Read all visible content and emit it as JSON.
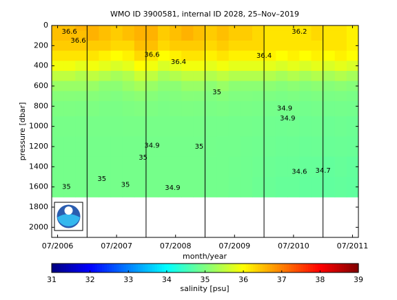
{
  "chart_data": {
    "type": "section",
    "title": "WMO ID 3900581, internal ID 2028, 25–Nov–2019",
    "x_label": "month/year",
    "y_label": "pressure [dbar]",
    "colorbar_label": "salinity [psu]",
    "xlim": [
      2006.4,
      2011.6
    ],
    "xticks": [
      {
        "value": 2006.5,
        "label": "07/2006"
      },
      {
        "value": 2007.5,
        "label": "07/2007"
      },
      {
        "value": 2008.5,
        "label": "07/2008"
      },
      {
        "value": 2009.5,
        "label": "07/2009"
      },
      {
        "value": 2010.5,
        "label": "07/2010"
      },
      {
        "value": 2011.5,
        "label": "07/2011"
      }
    ],
    "ylim": [
      2100,
      0
    ],
    "yticks": [
      0,
      200,
      400,
      600,
      800,
      1000,
      1200,
      1400,
      1600,
      1800,
      2000
    ],
    "clim": [
      31,
      39
    ],
    "colorbar_ticks": [
      31,
      32,
      33,
      34,
      35,
      36,
      37,
      38,
      39
    ],
    "year_lines": [
      2007,
      2008,
      2009,
      2010,
      2011
    ],
    "x": [
      2006.5,
      2006.7,
      2006.9,
      2007.1,
      2007.3,
      2007.5,
      2007.7,
      2007.9,
      2008.1,
      2008.3,
      2008.5,
      2008.7,
      2008.9,
      2009.1,
      2009.3,
      2009.5,
      2009.7,
      2009.9,
      2010.1,
      2010.3,
      2010.5,
      2010.7,
      2010.9,
      2011.1,
      2011.3,
      2011.5
    ],
    "pressure_levels": [
      0,
      100,
      200,
      300,
      400,
      500,
      600,
      700,
      800,
      1000,
      1200,
      1400,
      1600
    ],
    "salinity": [
      [
        36.5,
        36.5,
        36.4,
        36.2,
        35.9,
        35.5,
        35.2,
        35.05,
        34.98,
        34.93,
        34.92,
        34.92,
        34.92
      ],
      [
        36.5,
        36.5,
        36.4,
        36.2,
        35.9,
        35.5,
        35.2,
        35.05,
        34.98,
        34.93,
        34.92,
        34.92,
        34.92
      ],
      [
        36.6,
        36.5,
        36.4,
        36.2,
        35.8,
        35.4,
        35.2,
        35.04,
        34.97,
        34.93,
        34.92,
        34.92,
        34.92
      ],
      [
        36.6,
        36.6,
        36.4,
        36.2,
        35.9,
        35.5,
        35.2,
        35.05,
        34.98,
        34.93,
        34.92,
        34.92,
        34.92
      ],
      [
        36.5,
        36.5,
        36.4,
        36.1,
        35.8,
        35.4,
        35.1,
        35.02,
        34.96,
        34.93,
        34.92,
        34.92,
        34.92
      ],
      [
        36.4,
        36.4,
        36.3,
        36.0,
        35.7,
        35.3,
        35.1,
        35.0,
        34.96,
        34.93,
        34.92,
        34.92,
        34.92
      ],
      [
        36.5,
        36.5,
        36.3,
        36.1,
        35.8,
        35.4,
        35.2,
        35.05,
        34.98,
        34.94,
        34.92,
        34.92,
        34.92
      ],
      [
        36.6,
        36.6,
        36.5,
        36.3,
        36.0,
        35.6,
        35.3,
        35.1,
        35.0,
        34.94,
        34.92,
        34.92,
        34.92
      ],
      [
        36.6,
        36.6,
        36.5,
        36.2,
        35.9,
        35.5,
        35.2,
        35.05,
        34.98,
        34.93,
        34.92,
        34.92,
        34.92
      ],
      [
        36.4,
        36.4,
        36.3,
        36.0,
        35.7,
        35.3,
        35.1,
        35.0,
        34.96,
        34.93,
        34.92,
        34.92,
        34.92
      ],
      [
        36.5,
        36.5,
        36.4,
        36.1,
        35.8,
        35.4,
        35.1,
        35.02,
        34.97,
        34.93,
        34.92,
        34.92,
        34.92
      ],
      [
        36.6,
        36.6,
        36.4,
        36.2,
        35.9,
        35.5,
        35.2,
        35.05,
        34.98,
        34.93,
        34.92,
        34.92,
        34.92
      ],
      [
        36.5,
        36.5,
        36.4,
        36.2,
        35.9,
        35.5,
        35.2,
        35.04,
        34.97,
        34.93,
        34.92,
        34.92,
        34.92
      ],
      [
        36.4,
        36.4,
        36.3,
        36.1,
        35.8,
        35.4,
        35.1,
        35.0,
        34.96,
        34.92,
        34.91,
        34.9,
        34.9
      ],
      [
        36.5,
        36.5,
        36.4,
        36.2,
        35.9,
        35.5,
        35.2,
        35.04,
        34.97,
        34.92,
        34.9,
        34.9,
        34.9
      ],
      [
        36.4,
        36.4,
        36.3,
        36.1,
        35.8,
        35.4,
        35.1,
        35.0,
        34.95,
        34.91,
        34.9,
        34.89,
        34.88
      ],
      [
        36.4,
        36.4,
        36.3,
        36.1,
        35.8,
        35.4,
        35.1,
        35.0,
        34.95,
        34.91,
        34.89,
        34.88,
        34.88
      ],
      [
        36.3,
        36.3,
        36.3,
        36.1,
        35.8,
        35.4,
        35.1,
        34.99,
        34.94,
        34.9,
        34.88,
        34.86,
        34.85
      ],
      [
        36.2,
        36.2,
        36.2,
        36.1,
        35.8,
        35.4,
        35.1,
        34.98,
        34.92,
        34.88,
        34.86,
        34.84,
        34.82
      ],
      [
        36.2,
        36.2,
        36.2,
        36.0,
        35.7,
        35.3,
        35.05,
        34.96,
        34.91,
        34.87,
        34.85,
        34.82,
        34.8
      ],
      [
        36.2,
        36.2,
        36.2,
        36.1,
        35.8,
        35.4,
        35.1,
        34.98,
        34.92,
        34.88,
        34.85,
        34.82,
        34.8
      ],
      [
        36.2,
        36.2,
        36.2,
        36.0,
        35.7,
        35.3,
        35.05,
        34.96,
        34.9,
        34.86,
        34.83,
        34.8,
        34.78
      ],
      [
        36.3,
        36.3,
        36.2,
        36.1,
        35.8,
        35.4,
        35.1,
        34.98,
        34.92,
        34.87,
        34.84,
        34.8,
        34.78
      ],
      [
        36.2,
        36.2,
        36.2,
        36.0,
        35.7,
        35.3,
        35.05,
        34.96,
        34.9,
        34.85,
        34.82,
        34.78,
        34.76
      ],
      [
        36.2,
        36.2,
        36.2,
        36.1,
        35.8,
        35.4,
        35.1,
        34.97,
        34.91,
        34.86,
        34.83,
        34.8,
        34.78
      ],
      [
        36.1,
        36.1,
        36.1,
        36.0,
        35.7,
        35.3,
        35.05,
        34.95,
        34.9,
        34.85,
        34.82,
        34.78,
        34.76
      ]
    ],
    "contour_labels": [
      {
        "text": "36.6",
        "x": 2006.7,
        "y": 60
      },
      {
        "text": "36.6",
        "x": 2006.85,
        "y": 150
      },
      {
        "text": "36.6",
        "x": 2008.1,
        "y": 290
      },
      {
        "text": "36.4",
        "x": 2008.55,
        "y": 360
      },
      {
        "text": "36.4",
        "x": 2010.0,
        "y": 300
      },
      {
        "text": "36.2",
        "x": 2010.6,
        "y": 60
      },
      {
        "text": "35",
        "x": 2009.2,
        "y": 660
      },
      {
        "text": "35",
        "x": 2008.9,
        "y": 1200
      },
      {
        "text": "35",
        "x": 2007.95,
        "y": 1310
      },
      {
        "text": "34.9",
        "x": 2008.1,
        "y": 1190
      },
      {
        "text": "34.9",
        "x": 2008.45,
        "y": 1610
      },
      {
        "text": "34.9",
        "x": 2010.35,
        "y": 820
      },
      {
        "text": "34.9",
        "x": 2010.4,
        "y": 920
      },
      {
        "text": "34.6",
        "x": 2010.6,
        "y": 1450
      },
      {
        "text": "34.7",
        "x": 2011.0,
        "y": 1440
      },
      {
        "text": "35",
        "x": 2006.65,
        "y": 1600
      },
      {
        "text": "35",
        "x": 2007.25,
        "y": 1520
      },
      {
        "text": "35",
        "x": 2007.65,
        "y": 1580
      }
    ]
  }
}
